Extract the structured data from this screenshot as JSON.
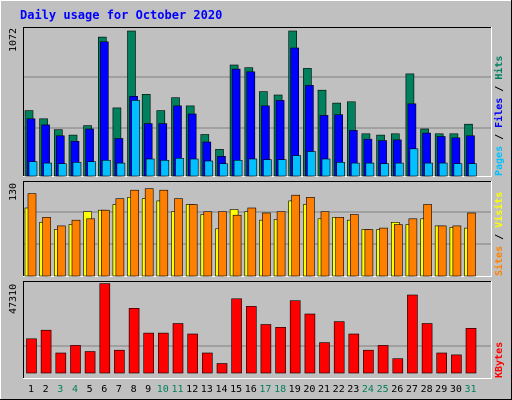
{
  "title": "Daily usage for October 2020",
  "colors": {
    "background": "#c0c0c0",
    "title": "#0000ff",
    "hits": "#00805c",
    "files": "#0000ff",
    "pages": "#00c0ff",
    "visits": "#ffff00",
    "sites": "#ff8000",
    "kbytes": "#ff0000",
    "weekend_day": "#00805c",
    "weekday": "#000000"
  },
  "chart_data": [
    {
      "type": "bar",
      "name": "hits-files-pages",
      "ymax_label": "1072",
      "ylim": [
        0,
        1072
      ],
      "legend": [
        {
          "label": "Pages",
          "color": "#00c0ff"
        },
        {
          "label": "Files",
          "color": "#0000ff"
        },
        {
          "label": "Hits",
          "color": "#00805c"
        }
      ],
      "separator": " / ",
      "series": [
        {
          "name": "Hits",
          "values": [
            480,
            420,
            340,
            300,
            370,
            1020,
            500,
            1065,
            600,
            480,
            575,
            515,
            305,
            195,
            815,
            795,
            620,
            595,
            1065,
            790,
            630,
            535,
            545,
            310,
            300,
            310,
            750,
            345,
            310,
            310,
            380
          ]
        },
        {
          "name": "Files",
          "values": [
            420,
            375,
            295,
            255,
            345,
            985,
            275,
            585,
            385,
            385,
            515,
            455,
            250,
            145,
            785,
            765,
            515,
            555,
            940,
            665,
            445,
            450,
            335,
            270,
            260,
            265,
            530,
            315,
            290,
            280,
            295
          ]
        },
        {
          "name": "Pages",
          "values": [
            105,
            95,
            90,
            100,
            105,
            115,
            95,
            555,
            125,
            115,
            130,
            125,
            110,
            90,
            115,
            125,
            120,
            120,
            150,
            180,
            125,
            100,
            95,
            95,
            90,
            95,
            200,
            95,
            95,
            90,
            90
          ]
        }
      ]
    },
    {
      "type": "bar",
      "name": "sites-visits",
      "ymax_label": "130",
      "ylim": [
        0,
        130
      ],
      "legend": [
        {
          "label": "Sites",
          "color": "#ff8000"
        },
        {
          "label": "Visits",
          "color": "#ffff00"
        }
      ],
      "separator": " / ",
      "series": [
        {
          "name": "Visits",
          "values": [
            95,
            75,
            65,
            72,
            90,
            92,
            100,
            110,
            108,
            105,
            90,
            100,
            86,
            66,
            93,
            90,
            78,
            79,
            105,
            100,
            80,
            82,
            78,
            65,
            65,
            75,
            72,
            80,
            70,
            68,
            67
          ]
        },
        {
          "name": "Sites",
          "values": [
            115,
            82,
            70,
            78,
            80,
            92,
            108,
            120,
            122,
            120,
            108,
            100,
            90,
            90,
            85,
            95,
            88,
            90,
            113,
            110,
            90,
            82,
            86,
            65,
            67,
            72,
            80,
            100,
            70,
            70,
            88
          ]
        }
      ]
    },
    {
      "type": "bar",
      "name": "kbytes",
      "ymax_label": "47310",
      "ylim": [
        0,
        47310
      ],
      "legend": [
        {
          "label": "KBytes",
          "color": "#ff0000"
        }
      ],
      "series": [
        {
          "name": "KBytes",
          "values": [
            18000,
            22500,
            10500,
            14500,
            11300,
            47000,
            12000,
            34000,
            21000,
            21000,
            26000,
            20500,
            10500,
            5000,
            39000,
            35000,
            25500,
            24000,
            38000,
            31000,
            16000,
            27000,
            20500,
            12000,
            14500,
            7500,
            41000,
            26000,
            10500,
            9500,
            23500
          ]
        }
      ]
    }
  ],
  "x_axis": {
    "days": [
      "1",
      "2",
      "3",
      "4",
      "5",
      "6",
      "7",
      "8",
      "9",
      "10",
      "11",
      "12",
      "13",
      "14",
      "15",
      "16",
      "17",
      "18",
      "19",
      "20",
      "21",
      "22",
      "23",
      "24",
      "25",
      "26",
      "27",
      "28",
      "29",
      "30",
      "31"
    ],
    "weekend": [
      false,
      false,
      true,
      true,
      false,
      false,
      false,
      false,
      false,
      true,
      true,
      false,
      false,
      false,
      false,
      false,
      true,
      true,
      false,
      false,
      false,
      false,
      false,
      true,
      true,
      false,
      false,
      false,
      false,
      false,
      true
    ]
  }
}
